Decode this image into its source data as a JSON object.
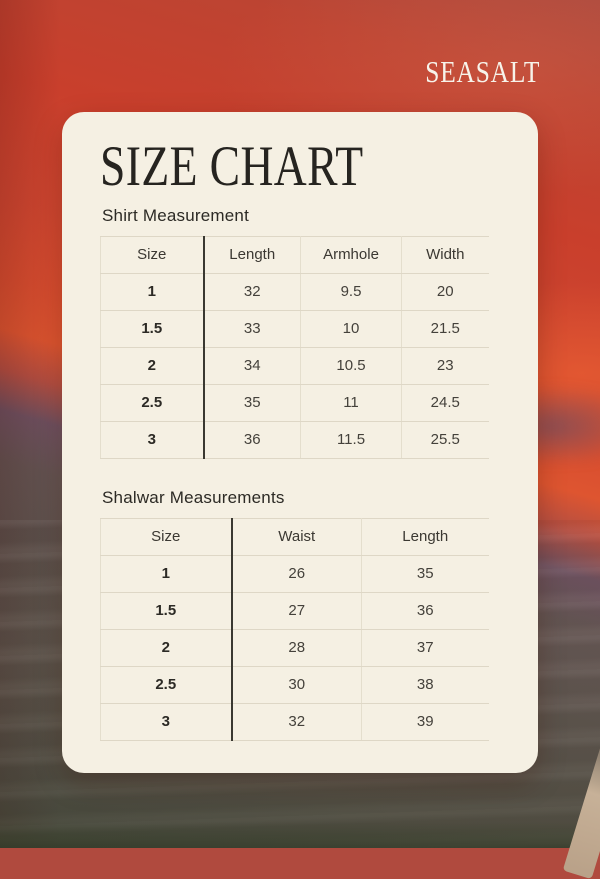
{
  "brand": {
    "logo": "SEASALT"
  },
  "card": {
    "title": "SIZE CHART"
  },
  "shirt_table": {
    "heading": "Shirt Measurement",
    "columns": [
      "Size",
      "Length",
      "Armhole",
      "Width"
    ],
    "rows": [
      [
        "1",
        "32",
        "9.5",
        "20"
      ],
      [
        "1.5",
        "33",
        "10",
        "21.5"
      ],
      [
        "2",
        "34",
        "10.5",
        "23"
      ],
      [
        "2.5",
        "35",
        "11",
        "24.5"
      ],
      [
        "3",
        "36",
        "11.5",
        "25.5"
      ]
    ]
  },
  "shalwar_table": {
    "heading": "Shalwar Measurements",
    "columns": [
      "Size",
      "Waist",
      "Length"
    ],
    "rows": [
      [
        "1",
        "26",
        "35"
      ],
      [
        "1.5",
        "27",
        "36"
      ],
      [
        "2",
        "28",
        "37"
      ],
      [
        "2.5",
        "30",
        "38"
      ],
      [
        "3",
        "32",
        "39"
      ]
    ]
  },
  "colors": {
    "sunset_red": "#c93f2c",
    "sunset_orange_glow": "#de5530",
    "dusk_purple": "#6e5160",
    "water_gray": "#5a524b",
    "card_cream": "#f5f0e3",
    "table_line_light": "#ded7c6",
    "table_divider_dark": "#3a3831",
    "text_dark": "#2c2a25",
    "logo_white": "#f7f3ea",
    "corner_wedge_tan": "#c7b198"
  }
}
